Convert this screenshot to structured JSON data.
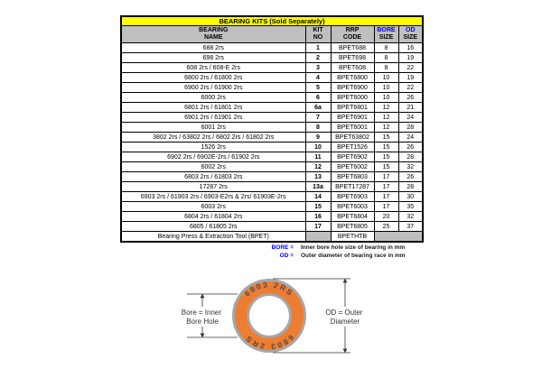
{
  "title": "BEARING KITS (Sold Separately)",
  "table": {
    "headers": {
      "name": [
        "BEARING",
        "NAME"
      ],
      "kit": [
        "KIT",
        "NO"
      ],
      "rrp": [
        "RRP",
        "CODE"
      ],
      "bore": [
        "BORE",
        "SIZE"
      ],
      "od": [
        "OD",
        "SIZE"
      ]
    },
    "rows": [
      {
        "name": "688 2rs",
        "kit": "1",
        "code": "BPET688",
        "bore": "8",
        "od": "16"
      },
      {
        "name": "698 2rs",
        "kit": "2",
        "code": "BPET698",
        "bore": "8",
        "od": "19"
      },
      {
        "name": "608 2rs / 608-E 2rs",
        "kit": "3",
        "code": "BPET608",
        "bore": "8",
        "od": "22"
      },
      {
        "name": "6800 2rs / 61800 2rs",
        "kit": "4",
        "code": "BPET6800",
        "bore": "10",
        "od": "19"
      },
      {
        "name": "6900 2rs / 61900 2rs",
        "kit": "5",
        "code": "BPET6900",
        "bore": "10",
        "od": "22"
      },
      {
        "name": "6000 2rs",
        "kit": "6",
        "code": "BPET6000",
        "bore": "10",
        "od": "26"
      },
      {
        "name": "6801 2rs / 61801 2rs",
        "kit": "6a",
        "code": "BPET6801",
        "bore": "12",
        "od": "21"
      },
      {
        "name": "6901 2rs / 61901 2rs",
        "kit": "7",
        "code": "BPET6901",
        "bore": "12",
        "od": "24"
      },
      {
        "name": "6001 2rs",
        "kit": "8",
        "code": "BPET6001",
        "bore": "12",
        "od": "28"
      },
      {
        "name": "3802 2rs / 63802 2rs / 6802 2rs / 61802 2rs",
        "kit": "9",
        "code": "BPET63802",
        "bore": "15",
        "od": "24"
      },
      {
        "name": "1526 2rs",
        "kit": "10",
        "code": "BPET1526",
        "bore": "15",
        "od": "26"
      },
      {
        "name": "6902 2rs / 6902E-2rs / 61902 2rs",
        "kit": "11",
        "code": "BPET6902",
        "bore": "15",
        "od": "28"
      },
      {
        "name": "6002 2rs",
        "kit": "12",
        "code": "BPET6002",
        "bore": "15",
        "od": "32"
      },
      {
        "name": "6803 2rs / 61803 2rs",
        "kit": "13",
        "code": "BPET6803",
        "bore": "17",
        "od": "26"
      },
      {
        "name": "17287 2rs",
        "kit": "13a",
        "code": "BPET17287",
        "bore": "17",
        "od": "28"
      },
      {
        "name": "6903 2rs / 61903 2rs / 6903-E2rs & 2rs/ 61903E-2rs",
        "kit": "14",
        "code": "BPET6903",
        "bore": "17",
        "od": "30"
      },
      {
        "name": "6003 2rs",
        "kit": "15",
        "code": "BPET6003",
        "bore": "17",
        "od": "35"
      },
      {
        "name": "6804 2rs / 61804 2rs",
        "kit": "16",
        "code": "BPET6804",
        "bore": "20",
        "od": "32"
      },
      {
        "name": "6805 / 61805 2rs",
        "kit": "17",
        "code": "BPET6805",
        "bore": "25",
        "od": "37"
      }
    ],
    "footer_row": {
      "name": "Bearing Press & Extraction Tool (BPET)",
      "code": "BPETHTB"
    }
  },
  "legend": [
    {
      "term": "BORE =",
      "desc": "Inner bore hole size of bearing in mm"
    },
    {
      "term": "OD =",
      "desc": "Outer diameter of bearing race in mm"
    }
  ],
  "diagram": {
    "ring_text": "6803 2RS",
    "bore_label_line1": "Bore = Inner",
    "bore_label_line2": "Bore Hole",
    "od_label_line1": "OD = Outer",
    "od_label_line2": "Diameter"
  },
  "colors": {
    "title_bg": "#FFFF00",
    "header_bg": "#BFBFBF",
    "accent_blue": "#0000FF",
    "ring_orange": "#ED7D31",
    "ring_gray": "#A6A6A6"
  }
}
